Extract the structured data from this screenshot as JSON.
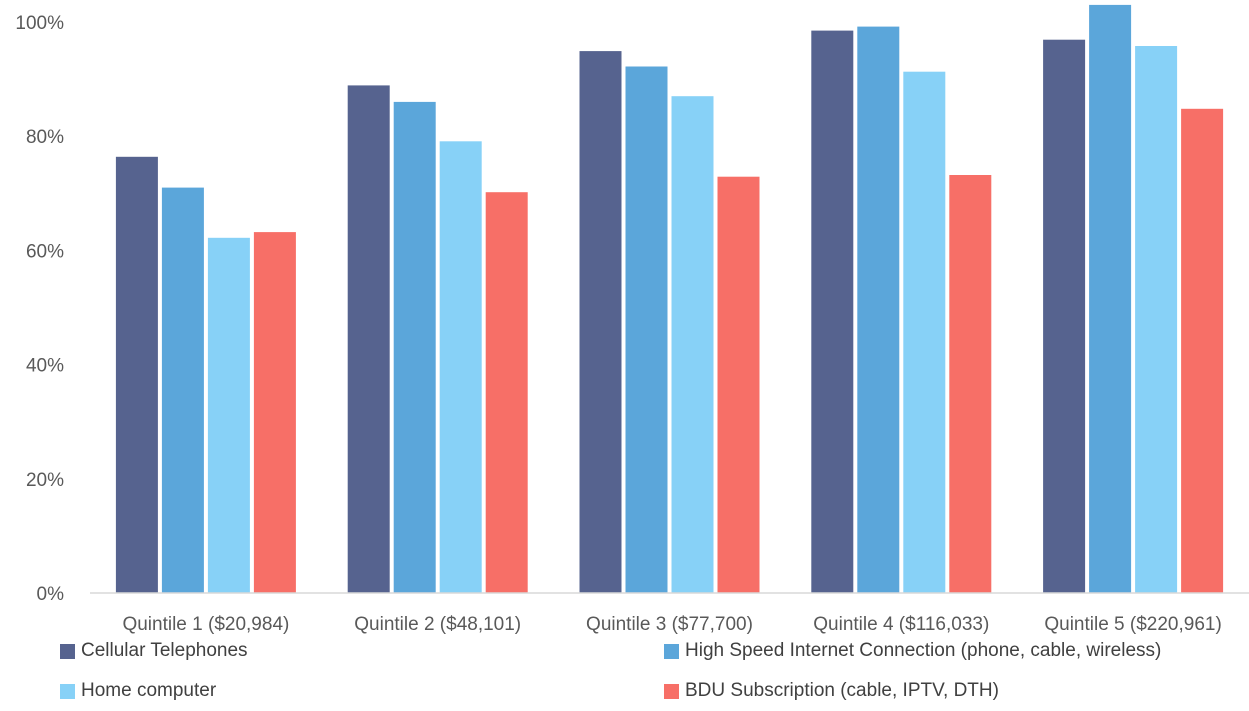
{
  "chart_data": {
    "type": "bar",
    "categories": [
      "Quintile 1 ($20,984)",
      "Quintile 2 ($48,101)",
      "Quintile 3 ($77,700)",
      "Quintile 4 ($116,033)",
      "Quintile 5 ($220,961)"
    ],
    "series": [
      {
        "name": "Cellular Telephones",
        "color": "#56638F",
        "values": [
          76.4,
          88.9,
          94.9,
          98.5,
          96.9
        ]
      },
      {
        "name": "High Speed Internet Connection (phone, cable, wireless)",
        "color": "#5BA6DA",
        "values": [
          71.0,
          86.0,
          92.2,
          99.2,
          103.0
        ]
      },
      {
        "name": "Home computer",
        "color": "#87D1F7",
        "values": [
          62.2,
          79.1,
          87.0,
          91.3,
          95.8
        ]
      },
      {
        "name": "BDU Subscription (cable, IPTV, DTH)",
        "color": "#F76F67",
        "values": [
          63.2,
          70.2,
          72.9,
          73.2,
          84.8
        ]
      }
    ],
    "y_ticks": [
      "0%",
      "20%",
      "40%",
      "60%",
      "80%",
      "100%"
    ],
    "ylim": [
      0,
      103
    ],
    "grid": false,
    "legend_position": "bottom",
    "title": "",
    "xlabel": "",
    "ylabel": ""
  }
}
